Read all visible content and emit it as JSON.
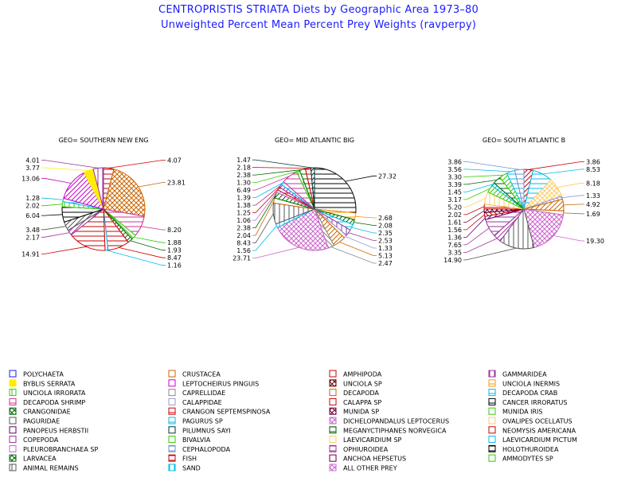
{
  "title": "CENTROPRISTIS STRIATA Diets by Geographic Area 1973–80",
  "subtitle": "Unweighted Percent Mean Percent Prey  Weights (ravperpy)",
  "legend_entries": [
    {
      "label": "POLYCHAETA",
      "color": "#1a1aff",
      "icon": "diag-hatch"
    },
    {
      "label": "CRUSTACEA",
      "color": "#cc6600",
      "icon": "diag-hatch"
    },
    {
      "label": "AMPHIPODA",
      "color": "#cc0000",
      "icon": "empty"
    },
    {
      "label": "GAMMARIDEA",
      "color": "#993399",
      "icon": "vlines"
    },
    {
      "label": "BYBLIS SERRATA",
      "color": "#ffee00",
      "icon": "solid"
    },
    {
      "label": "LEPTOCHEIRUS PINGUIS",
      "color": "#cc00cc",
      "icon": "diag-hatch"
    },
    {
      "label": "UNCIOLA SP",
      "color": "#660000",
      "icon": "cross"
    },
    {
      "label": "UNCIOLA INERMIS",
      "color": "#ff9900",
      "icon": "hlines"
    },
    {
      "label": "UNCIOLA IRRORATA",
      "color": "#33cc00",
      "icon": "vlines"
    },
    {
      "label": "CAPRELLIDAE",
      "color": "#888888",
      "icon": "diag-hatch"
    },
    {
      "label": "DECAPODA",
      "color": "#cc6600",
      "icon": "empty"
    },
    {
      "label": "DECAPODA CRAB",
      "color": "#00bbee",
      "icon": "hlines"
    },
    {
      "label": "DECAPODA SHRIMP",
      "color": "#cc3399",
      "icon": "hlines"
    },
    {
      "label": "CALAPPIDAE",
      "color": "#9999cc",
      "icon": "diag-hatch"
    },
    {
      "label": "CALAPPA SP",
      "color": "#cc0000",
      "icon": "diag-hatch"
    },
    {
      "label": "CANCER IRRORATUS",
      "color": "#000000",
      "icon": "hlines"
    },
    {
      "label": "CRANGONIDAE",
      "color": "#006600",
      "icon": "cross"
    },
    {
      "label": "CRANGON SEPTEMSPINOSA",
      "color": "#cc0000",
      "icon": "hlines"
    },
    {
      "label": "MUNIDA SP",
      "color": "#660033",
      "icon": "cross"
    },
    {
      "label": "MUNIDA IRIS",
      "color": "#33cc00",
      "icon": "diag-hatch"
    },
    {
      "label": "PAGURIDAE",
      "color": "#555555",
      "icon": "empty"
    },
    {
      "label": "PAGURUS SP",
      "color": "#00bbee",
      "icon": "hlines"
    },
    {
      "label": "DICHELOPANDALUS LEPTOCERUS",
      "color": "#cc66cc",
      "icon": "cross"
    },
    {
      "label": "OVALIPES OCELLATUS",
      "color": "#ffcc66",
      "icon": "diag-hatch"
    },
    {
      "label": "PANOPEUS HERBSTII",
      "color": "#660066",
      "icon": "diag-hatch"
    },
    {
      "label": "PILUMNUS SAYI",
      "color": "#003333",
      "icon": "diag-hatch"
    },
    {
      "label": "MEGANYCTIPHANES NORVEGICA",
      "color": "#006600",
      "icon": "hlines"
    },
    {
      "label": "NEOMYSIS AMERICANA",
      "color": "#cc0000",
      "icon": "diag-hatch"
    },
    {
      "label": "COPEPODA",
      "color": "#993399",
      "icon": "diag-hatch"
    },
    {
      "label": "BIVALVIA",
      "color": "#33cc00",
      "icon": "diag-hatch"
    },
    {
      "label": "LAEVICARDIUM SP",
      "color": "#ffcc66",
      "icon": "empty"
    },
    {
      "label": "LAEVICARDIUM PICTUM",
      "color": "#00bbee",
      "icon": "diag-hatch"
    },
    {
      "label": "PLEUROBRANCHAEA SP",
      "color": "#cc66cc",
      "icon": "diag-hatch"
    },
    {
      "label": "CEPHALOPODA",
      "color": "#6699cc",
      "icon": "hlines"
    },
    {
      "label": "OPHIUROIDEA",
      "color": "#993399",
      "icon": "hlines"
    },
    {
      "label": "HOLOTHUROIDEA",
      "color": "#000000",
      "icon": "hlines"
    },
    {
      "label": "LARVACEA",
      "color": "#006600",
      "icon": "cross"
    },
    {
      "label": "FISH",
      "color": "#cc0000",
      "icon": "hlines"
    },
    {
      "label": "ANCHOA HEPSETUS",
      "color": "#660033",
      "icon": "diag-hatch"
    },
    {
      "label": "AMMODYTES SP",
      "color": "#33cc00",
      "icon": "diag-hatch"
    },
    {
      "label": "ANIMAL REMAINS",
      "color": "#555555",
      "icon": "vlines"
    },
    {
      "label": "SAND",
      "color": "#00bbee",
      "icon": "vlines"
    },
    {
      "label": "ALL OTHER PREY",
      "color": "#cc66cc",
      "icon": "cross"
    }
  ],
  "chart_data": [
    {
      "type": "pie",
      "title": "GEO= SOUTHERN NEW ENG",
      "slices": [
        {
          "prey": "AMPHIPODA",
          "value": 4.07,
          "label": "4.07",
          "color": "#cc0000",
          "pattern": "hlines"
        },
        {
          "prey": "CRUSTACEA",
          "value": 23.81,
          "label": "23.81",
          "color": "#cc6600",
          "pattern": "cross"
        },
        {
          "prey": "DECAPODA SHRIMP",
          "value": 8.2,
          "label": "8.20",
          "color": "#cc3399",
          "pattern": "hlines"
        },
        {
          "prey": "MUNIDA IRIS",
          "value": 1.88,
          "label": "1.88",
          "color": "#33cc00",
          "pattern": "diag2"
        },
        {
          "prey": "LARVACEA",
          "value": 1.93,
          "label": "1.93",
          "color": "#006600",
          "pattern": "diag"
        },
        {
          "prey": "FISH",
          "value": 8.47,
          "label": "8.47",
          "color": "#cc0000",
          "pattern": "hlines"
        },
        {
          "prey": "SAND",
          "value": 1.16,
          "label": "1.16",
          "color": "#00bbee",
          "pattern": "vlines"
        },
        {
          "prey": "CRANGON SEPTEMSPINOSA",
          "value": 14.91,
          "label": "14.91",
          "color": "#cc0000",
          "pattern": "hlines"
        },
        {
          "prey": "COPEPODA",
          "value": 2.17,
          "label": "2.17",
          "color": "#993399",
          "pattern": "diag"
        },
        {
          "prey": "PAGURIDAE",
          "value": 3.48,
          "label": "3.48",
          "color": "#555555",
          "pattern": "diag"
        },
        {
          "prey": "CANCER IRRORATUS",
          "value": 6.04,
          "label": "6.04",
          "color": "#000000",
          "pattern": "hlines"
        },
        {
          "prey": "UNCIOLA IRRORATA",
          "value": 2.02,
          "label": "2.02",
          "color": "#33cc00",
          "pattern": "vlines"
        },
        {
          "prey": "DECAPODA CRAB",
          "value": 1.28,
          "label": "1.28",
          "color": "#00bbee",
          "pattern": "hlines"
        },
        {
          "prey": "LEPTOCHEIRUS PINGUIS",
          "value": 13.06,
          "label": "13.06",
          "color": "#cc00cc",
          "pattern": "diag"
        },
        {
          "prey": "BYBLIS SERRATA",
          "value": 3.77,
          "label": "3.77",
          "color": "#ffee00",
          "pattern": "solid"
        },
        {
          "prey": "GAMMARIDEA",
          "value": 4.01,
          "label": "4.01",
          "color": "#993399",
          "pattern": "vlines"
        }
      ]
    },
    {
      "type": "pie",
      "title": "GEO= MID ATLANTIC BIG",
      "slices": [
        {
          "prey": "CANCER IRRORATUS",
          "value": 27.32,
          "label": "27.32",
          "color": "#000000",
          "pattern": "hlines"
        },
        {
          "prey": "UNCIOLA INERMIS",
          "value": 2.68,
          "label": "2.68",
          "color": "#ff9900",
          "pattern": "hlines"
        },
        {
          "prey": "CRANGONIDAE",
          "value": 2.08,
          "label": "2.08",
          "color": "#006600",
          "pattern": "diag"
        },
        {
          "prey": "DECAPODA CRAB",
          "value": 2.35,
          "label": "2.35",
          "color": "#00bbee",
          "pattern": "hlines"
        },
        {
          "prey": "GAMMARIDEA",
          "value": 2.53,
          "label": "2.53",
          "color": "#993399",
          "pattern": "vlines"
        },
        {
          "prey": "CALAPPIDAE",
          "value": 1.33,
          "label": "1.33",
          "color": "#9999cc",
          "pattern": "diag2"
        },
        {
          "prey": "CRUSTACEA",
          "value": 5.13,
          "label": "5.13",
          "color": "#cc6600",
          "pattern": "diag"
        },
        {
          "prey": "CAPRELLIDAE",
          "value": 2.47,
          "label": "2.47",
          "color": "#888888",
          "pattern": "diag2"
        },
        {
          "prey": "DICHELOPANDALUS LEPTOCERUS",
          "value": 23.71,
          "label": "23.71",
          "color": "#cc66cc",
          "pattern": "cross"
        },
        {
          "prey": "SAND",
          "value": 1.56,
          "label": "1.56",
          "color": "#00bbee",
          "pattern": "vlines"
        },
        {
          "prey": "ANIMAL REMAINS",
          "value": 8.43,
          "label": "8.43",
          "color": "#555555",
          "pattern": "vlines"
        },
        {
          "prey": "DECAPODA",
          "value": 2.04,
          "label": "2.04",
          "color": "#cc6600",
          "pattern": "empty"
        },
        {
          "prey": "LARVACEA",
          "value": 2.38,
          "label": "2.38",
          "color": "#006600",
          "pattern": "diag"
        },
        {
          "prey": "PLEUROBRANCHAEA SP",
          "value": 1.06,
          "label": "1.06",
          "color": "#cc66cc",
          "pattern": "diag"
        },
        {
          "prey": "FISH",
          "value": 1.25,
          "label": "1.25",
          "color": "#cc0000",
          "pattern": "hlines"
        },
        {
          "prey": "COPEPODA",
          "value": 1.38,
          "label": "1.38",
          "color": "#993399",
          "pattern": "diag"
        },
        {
          "prey": "PAGURUS SP",
          "value": 1.39,
          "label": "1.39",
          "color": "#00bbee",
          "pattern": "hlines"
        },
        {
          "prey": "DECAPODA SHRIMP",
          "value": 6.49,
          "label": "6.49",
          "color": "#cc3399",
          "pattern": "hlines"
        },
        {
          "prey": "UNCIOLA IRRORATA",
          "value": 1.3,
          "label": "1.30",
          "color": "#33cc00",
          "pattern": "vlines"
        },
        {
          "prey": "MEGANYCTIPHANES NORVEGICA",
          "value": 2.38,
          "label": "2.38",
          "color": "#006600",
          "pattern": "hlines"
        },
        {
          "prey": "CRANGON SEPTEMSPINOSA",
          "value": 2.18,
          "label": "2.18",
          "color": "#cc0000",
          "pattern": "hlines"
        },
        {
          "prey": "PILUMNUS SAYI",
          "value": 1.47,
          "label": "1.47",
          "color": "#003333",
          "pattern": "diag"
        }
      ]
    },
    {
      "type": "pie",
      "title": "GEO= SOUTH ATLANTIC B",
      "slices": [
        {
          "prey": "CALAPPA SP",
          "value": 3.86,
          "label": "3.86",
          "color": "#cc0000",
          "pattern": "diag"
        },
        {
          "prey": "DECAPODA CRAB",
          "value": 8.53,
          "label": "8.53",
          "color": "#00bbee",
          "pattern": "hlines"
        },
        {
          "prey": "OVALIPES OCELLATUS",
          "value": 8.18,
          "label": "8.18",
          "color": "#ffcc66",
          "pattern": "cross"
        },
        {
          "prey": "CALAPPIDAE",
          "value": 1.33,
          "label": "1.33",
          "color": "#9999cc",
          "pattern": "diag2"
        },
        {
          "prey": "CRUSTACEA",
          "value": 4.92,
          "label": "4.92",
          "color": "#cc6600",
          "pattern": "diag"
        },
        {
          "prey": "DECAPODA",
          "value": 1.69,
          "label": "1.69",
          "color": "#cc6600",
          "pattern": "empty"
        },
        {
          "prey": "DICHELOPANDALUS LEPTOCERUS",
          "value": 19.3,
          "label": "19.30",
          "color": "#cc66cc",
          "pattern": "cross"
        },
        {
          "prey": "ANIMAL REMAINS",
          "value": 14.9,
          "label": "14.90",
          "color": "#555555",
          "pattern": "vlines"
        },
        {
          "prey": "COPEPODA",
          "value": 3.35,
          "label": "3.35",
          "color": "#993399",
          "pattern": "diag"
        },
        {
          "prey": "OPHIUROIDEA",
          "value": 7.65,
          "label": "7.65",
          "color": "#993399",
          "pattern": "hlines"
        },
        {
          "prey": "PANOPEUS HERBSTII",
          "value": 1.36,
          "label": "1.36",
          "color": "#660066",
          "pattern": "diag"
        },
        {
          "prey": "NEOMYSIS AMERICANA",
          "value": 1.56,
          "label": "1.56",
          "color": "#cc0000",
          "pattern": "diag2"
        },
        {
          "prey": "MUNIDA SP",
          "value": 1.61,
          "label": "1.61",
          "color": "#660033",
          "pattern": "cross"
        },
        {
          "prey": "CRANGON SEPTEMSPINOSA",
          "value": 2.02,
          "label": "2.02",
          "color": "#cc0000",
          "pattern": "hlines"
        },
        {
          "prey": "LAEVICARDIUM SP",
          "value": 5.2,
          "label": "5.20",
          "color": "#ffcc66",
          "pattern": "vlines"
        },
        {
          "prey": "BIVALVIA",
          "value": 3.17,
          "label": "3.17",
          "color": "#33cc00",
          "pattern": "diag"
        },
        {
          "prey": "LAEVICARDIUM PICTUM",
          "value": 1.45,
          "label": "1.45",
          "color": "#00bbee",
          "pattern": "diag"
        },
        {
          "prey": "MEGANYCTIPHANES NORVEGICA",
          "value": 3.39,
          "label": "3.39",
          "color": "#006600",
          "pattern": "hlines"
        },
        {
          "prey": "AMMODYTES SP",
          "value": 3.3,
          "label": "3.30",
          "color": "#33cc00",
          "pattern": "diag"
        },
        {
          "prey": "PAGURUS SP",
          "value": 3.56,
          "label": "3.56",
          "color": "#00bbee",
          "pattern": "hlines"
        },
        {
          "prey": "CEPHALOPODA",
          "value": 3.86,
          "label": "3.86",
          "color": "#6699cc",
          "pattern": "hlines"
        }
      ]
    }
  ]
}
